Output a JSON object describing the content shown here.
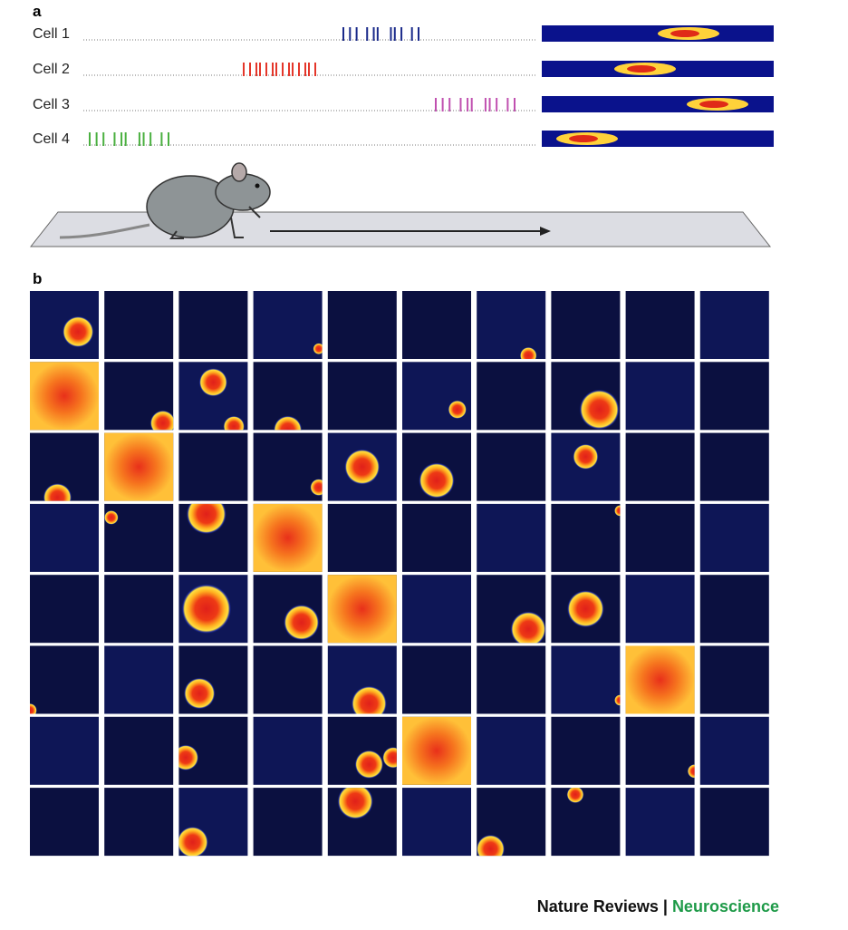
{
  "panel_a": {
    "label": "a",
    "cells": [
      "Cell 1",
      "Cell 2",
      "Cell 3",
      "Cell 4"
    ]
  },
  "panel_b": {
    "label": "b"
  },
  "footer": {
    "journal": "Nature Reviews",
    "separator": "|",
    "section": "Neuroscience"
  }
}
